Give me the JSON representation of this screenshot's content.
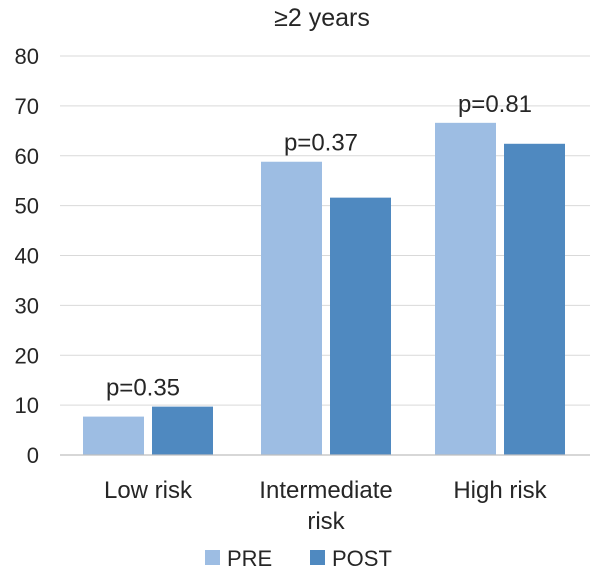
{
  "chart_data": {
    "type": "bar",
    "title": "≥2 years",
    "xlabel": "",
    "ylabel": "",
    "ylim": [
      0,
      80
    ],
    "yticks": [
      0,
      10,
      20,
      30,
      40,
      50,
      60,
      70,
      80
    ],
    "grid": true,
    "legend_position": "bottom",
    "categories": [
      [
        "Low risk"
      ],
      [
        "Intermediate",
        "risk"
      ],
      [
        "High risk"
      ]
    ],
    "series": [
      {
        "name": "PRE",
        "color": "#9dbde3",
        "values": [
          7.7,
          58.8,
          66.6
        ]
      },
      {
        "name": "POST",
        "color": "#4f89c0",
        "values": [
          9.7,
          51.6,
          62.4
        ]
      }
    ],
    "annotations": [
      "p=0.35",
      "p=0.37",
      "p=0.81"
    ]
  }
}
